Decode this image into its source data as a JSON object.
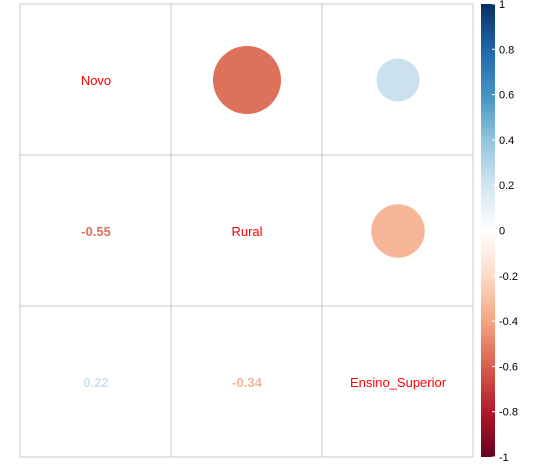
{
  "chart_data": {
    "type": "heatmap",
    "variables": [
      "Novo",
      "Rural",
      "Ensino_Superior"
    ],
    "matrix": [
      [
        1,
        -0.55,
        0.22
      ],
      [
        -0.55,
        1,
        -0.34
      ],
      [
        0.22,
        -0.34,
        1
      ]
    ],
    "upper_method": "circle",
    "lower_method": "number",
    "diagonal": "variable names",
    "lower_labels": [
      {
        "row": 1,
        "col": 0,
        "text": "-0.55"
      },
      {
        "row": 2,
        "col": 0,
        "text": "0.22"
      },
      {
        "row": 2,
        "col": 1,
        "text": "-0.34"
      }
    ],
    "colorbar": {
      "range": [
        -1,
        1
      ],
      "ticks": [
        "1",
        "0.8",
        "0.6",
        "0.4",
        "0.2",
        "0",
        "-0.2",
        "-0.4",
        "-0.6",
        "-0.8",
        "-1"
      ],
      "colors": [
        "#67001F",
        "#B2182B",
        "#D6604D",
        "#F4A582",
        "#FDDBC7",
        "#FFFFFF",
        "#D1E5F0",
        "#92C5DE",
        "#4393C3",
        "#2166AC",
        "#053061"
      ]
    },
    "label_color": "#FF0000",
    "grid": true
  }
}
